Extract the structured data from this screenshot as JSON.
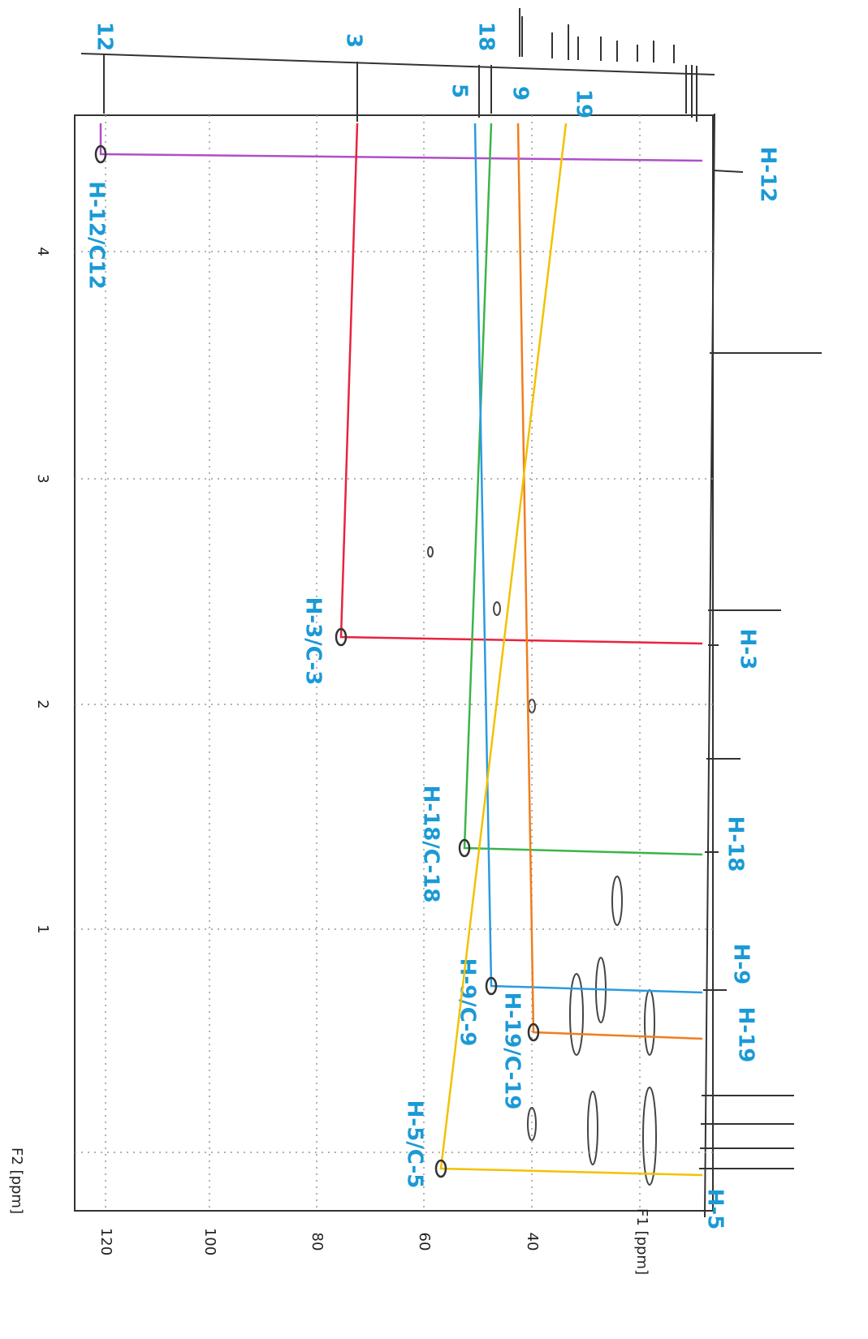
{
  "axes": {
    "f2_title": "F2 [ppm]",
    "f1_title": "F1 [ppm]",
    "f2_ticks": [
      "4",
      "3",
      "2",
      "1"
    ],
    "f1_ticks": [
      "120",
      "100",
      "80",
      "60",
      "40"
    ]
  },
  "carbon_labels": [
    "12",
    "3",
    "18",
    "5",
    "9",
    "19"
  ],
  "proton_labels": [
    "H-12",
    "H-3",
    "H-18",
    "H-9",
    "H-19",
    "H-5"
  ],
  "correlations": [
    "H-12/C12",
    "H-3/C-3",
    "H-18/C-18",
    "H-9/C-9",
    "H-19/C-19",
    "H-5/C-5"
  ]
}
